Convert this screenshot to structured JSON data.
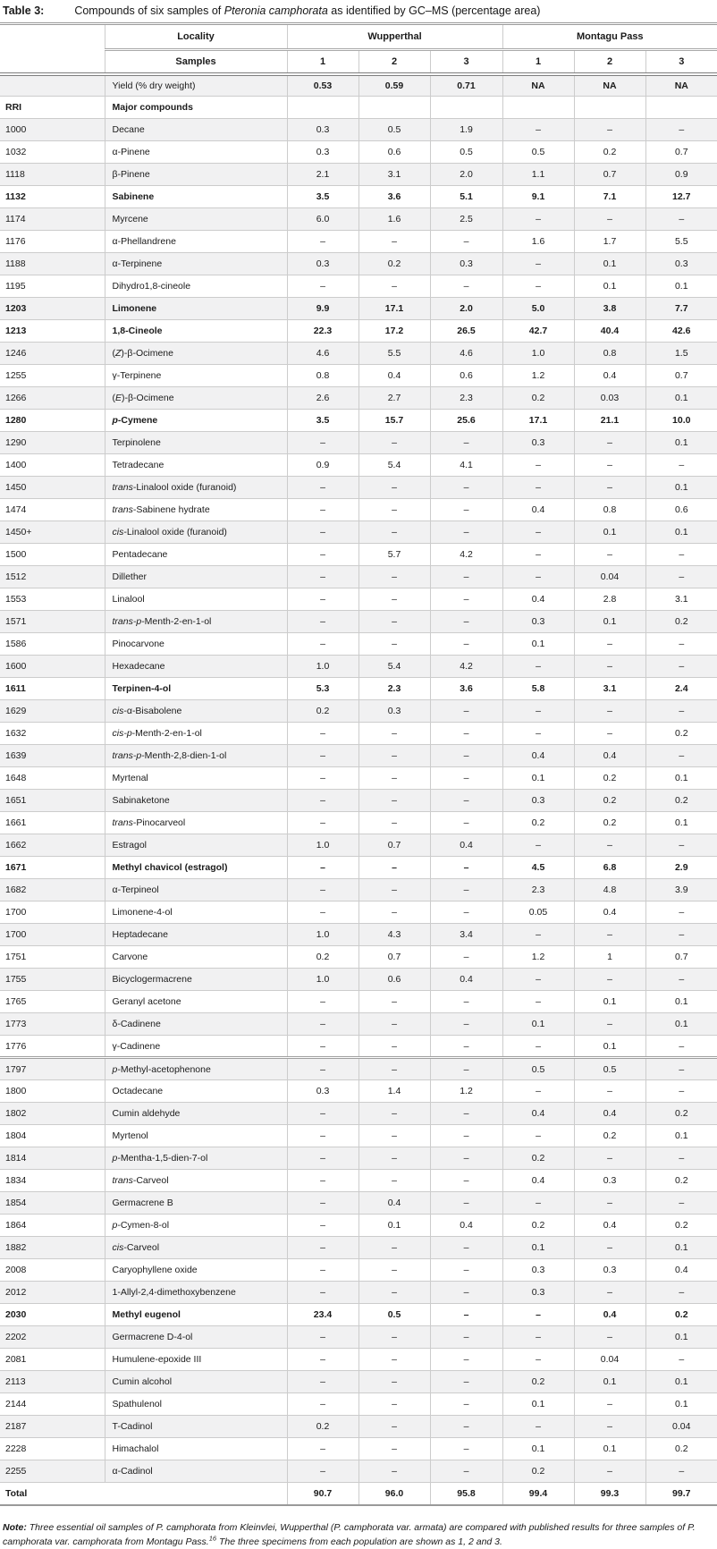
{
  "title": {
    "label": "Table 3:",
    "text": "Compounds of six samples of *Pteronia camphorata* as identified by GC–MS (percentage area)"
  },
  "table": {
    "locality_label": "Locality",
    "samples_label": "Samples",
    "groups": [
      {
        "name": "Wupperthal",
        "samples": [
          "1",
          "2",
          "3"
        ]
      },
      {
        "name": "Montagu Pass",
        "samples": [
          "1",
          "2",
          "3"
        ]
      }
    ],
    "yield_row": {
      "label": "Yield (% dry weight)",
      "values": [
        "0.53",
        "0.59",
        "0.71",
        "NA",
        "NA",
        "NA"
      ]
    },
    "subheader": {
      "rri": "RRI",
      "label": "Major compounds"
    },
    "rows": [
      {
        "rri": "1000",
        "name": "Decane",
        "bold": false,
        "values": [
          "0.3",
          "0.5",
          "1.9",
          "–",
          "–",
          "–"
        ]
      },
      {
        "rri": "1032",
        "name": "α-Pinene",
        "bold": false,
        "values": [
          "0.3",
          "0.6",
          "0.5",
          "0.5",
          "0.2",
          "0.7"
        ]
      },
      {
        "rri": "1118",
        "name": "β-Pinene",
        "bold": false,
        "values": [
          "2.1",
          "3.1",
          "2.0",
          "1.1",
          "0.7",
          "0.9"
        ]
      },
      {
        "rri": "1132",
        "name": "Sabinene",
        "bold": true,
        "values": [
          "3.5",
          "3.6",
          "5.1",
          "9.1",
          "7.1",
          "12.7"
        ]
      },
      {
        "rri": "1174",
        "name": "Myrcene",
        "bold": false,
        "values": [
          "6.0",
          "1.6",
          "2.5",
          "–",
          "–",
          "–"
        ]
      },
      {
        "rri": "1176",
        "name": "α-Phellandrene",
        "bold": false,
        "values": [
          "–",
          "–",
          "–",
          "1.6",
          "1.7",
          "5.5"
        ]
      },
      {
        "rri": "1188",
        "name": "α-Terpinene",
        "bold": false,
        "values": [
          "0.3",
          "0.2",
          "0.3",
          "–",
          "0.1",
          "0.3"
        ]
      },
      {
        "rri": "1195",
        "name": "Dihydro1,8-cineole",
        "bold": false,
        "values": [
          "–",
          "–",
          "–",
          "–",
          "0.1",
          "0.1"
        ]
      },
      {
        "rri": "1203",
        "name": "Limonene",
        "bold": true,
        "values": [
          "9.9",
          "17.1",
          "2.0",
          "5.0",
          "3.8",
          "7.7"
        ]
      },
      {
        "rri": "1213",
        "name": "1,8-Cineole",
        "bold": true,
        "values": [
          "22.3",
          "17.2",
          "26.5",
          "42.7",
          "40.4",
          "42.6"
        ]
      },
      {
        "rri": "1246",
        "name": "(*Z*)-β-Ocimene",
        "bold": false,
        "values": [
          "4.6",
          "5.5",
          "4.6",
          "1.0",
          "0.8",
          "1.5"
        ]
      },
      {
        "rri": "1255",
        "name": "γ-Terpinene",
        "bold": false,
        "values": [
          "0.8",
          "0.4",
          "0.6",
          "1.2",
          "0.4",
          "0.7"
        ]
      },
      {
        "rri": "1266",
        "name": "(*E*)-β-Ocimene",
        "bold": false,
        "values": [
          "2.6",
          "2.7",
          "2.3",
          "0.2",
          "0.03",
          "0.1"
        ]
      },
      {
        "rri": "1280",
        "name": "*p*-Cymene",
        "bold": true,
        "values": [
          "3.5",
          "15.7",
          "25.6",
          "17.1",
          "21.1",
          "10.0"
        ]
      },
      {
        "rri": "1290",
        "name": "Terpinolene",
        "bold": false,
        "values": [
          "–",
          "–",
          "–",
          "0.3",
          "–",
          "0.1"
        ]
      },
      {
        "rri": "1400",
        "name": "Tetradecane",
        "bold": false,
        "values": [
          "0.9",
          "5.4",
          "4.1",
          "–",
          "–",
          "–"
        ]
      },
      {
        "rri": "1450",
        "name": "*trans*-Linalool oxide (furanoid)",
        "bold": false,
        "values": [
          "–",
          "–",
          "–",
          "–",
          "–",
          "0.1"
        ]
      },
      {
        "rri": "1474",
        "name": "*trans*-Sabinene hydrate",
        "bold": false,
        "values": [
          "–",
          "–",
          "–",
          "0.4",
          "0.8",
          "0.6"
        ]
      },
      {
        "rri": "1450+",
        "name": "*cis*-Linalool oxide (furanoid)",
        "bold": false,
        "values": [
          "–",
          "–",
          "–",
          "–",
          "0.1",
          "0.1"
        ]
      },
      {
        "rri": "1500",
        "name": "Pentadecane",
        "bold": false,
        "values": [
          "–",
          "5.7",
          "4.2",
          "–",
          "–",
          "–"
        ]
      },
      {
        "rri": "1512",
        "name": "Dillether",
        "bold": false,
        "values": [
          "–",
          "–",
          "–",
          "–",
          "0.04",
          "–"
        ]
      },
      {
        "rri": "1553",
        "name": "Linalool",
        "bold": false,
        "values": [
          "–",
          "–",
          "–",
          "0.4",
          "2.8",
          "3.1"
        ]
      },
      {
        "rri": "1571",
        "name": "*trans-p*-Menth-2-en-1-ol",
        "bold": false,
        "values": [
          "–",
          "–",
          "–",
          "0.3",
          "0.1",
          "0.2"
        ]
      },
      {
        "rri": "1586",
        "name": "Pinocarvone",
        "bold": false,
        "values": [
          "–",
          "–",
          "–",
          "0.1",
          "–",
          "–"
        ]
      },
      {
        "rri": "1600",
        "name": "Hexadecane",
        "bold": false,
        "values": [
          "1.0",
          "5.4",
          "4.2",
          "–",
          "–",
          "–"
        ]
      },
      {
        "rri": "1611",
        "name": "Terpinen-4-ol",
        "bold": true,
        "values": [
          "5.3",
          "2.3",
          "3.6",
          "5.8",
          "3.1",
          "2.4"
        ]
      },
      {
        "rri": "1629",
        "name": "*cis*-α-Bisabolene",
        "bold": false,
        "values": [
          "0.2",
          "0.3",
          "–",
          "–",
          "–",
          "–"
        ]
      },
      {
        "rri": "1632",
        "name": "*cis-p*-Menth-2-en-1-ol",
        "bold": false,
        "values": [
          "–",
          "–",
          "–",
          "–",
          "–",
          "0.2"
        ]
      },
      {
        "rri": "1639",
        "name": "*trans-p*-Menth-2,8-dien-1-ol",
        "bold": false,
        "values": [
          "–",
          "–",
          "–",
          "0.4",
          "0.4",
          "–"
        ]
      },
      {
        "rri": "1648",
        "name": "Myrtenal",
        "bold": false,
        "values": [
          "–",
          "–",
          "–",
          "0.1",
          "0.2",
          "0.1"
        ]
      },
      {
        "rri": "1651",
        "name": "Sabinaketone",
        "bold": false,
        "values": [
          "–",
          "–",
          "–",
          "0.3",
          "0.2",
          "0.2"
        ]
      },
      {
        "rri": "1661",
        "name": "*trans*-Pinocarveol",
        "bold": false,
        "values": [
          "–",
          "–",
          "–",
          "0.2",
          "0.2",
          "0.1"
        ]
      },
      {
        "rri": "1662",
        "name": "Estragol",
        "bold": false,
        "values": [
          "1.0",
          "0.7",
          "0.4",
          "–",
          "–",
          "–"
        ]
      },
      {
        "rri": "1671",
        "name": "Methyl chavicol (estragol)",
        "bold": true,
        "values": [
          "–",
          "–",
          "–",
          "4.5",
          "6.8",
          "2.9"
        ]
      },
      {
        "rri": "1682",
        "name": "α-Terpineol",
        "bold": false,
        "values": [
          "–",
          "–",
          "–",
          "2.3",
          "4.8",
          "3.9"
        ]
      },
      {
        "rri": "1700",
        "name": "Limonene-4-ol",
        "bold": false,
        "values": [
          "–",
          "–",
          "–",
          "0.05",
          "0.4",
          "–"
        ]
      },
      {
        "rri": "1700",
        "name": "Heptadecane",
        "bold": false,
        "values": [
          "1.0",
          "4.3",
          "3.4",
          "–",
          "–",
          "–"
        ]
      },
      {
        "rri": "1751",
        "name": "Carvone",
        "bold": false,
        "values": [
          "0.2",
          "0.7",
          "–",
          "1.2",
          "1",
          "0.7"
        ]
      },
      {
        "rri": "1755",
        "name": "Bicyclogermacrene",
        "bold": false,
        "values": [
          "1.0",
          "0.6",
          "0.4",
          "–",
          "–",
          "–"
        ]
      },
      {
        "rri": "1765",
        "name": "Geranyl acetone",
        "bold": false,
        "values": [
          "–",
          "–",
          "–",
          "–",
          "0.1",
          "0.1"
        ]
      },
      {
        "rri": "1773",
        "name": "δ-Cadinene",
        "bold": false,
        "values": [
          "–",
          "–",
          "–",
          "0.1",
          "–",
          "0.1"
        ]
      },
      {
        "rri": "1776",
        "name": "γ-Cadinene",
        "bold": false,
        "values": [
          "–",
          "–",
          "–",
          "–",
          "0.1",
          "–"
        ]
      },
      {
        "rri": "1797",
        "name": "*p*-Methyl-acetophenone",
        "bold": false,
        "sep_before": true,
        "values": [
          "–",
          "–",
          "–",
          "0.5",
          "0.5",
          "–"
        ]
      },
      {
        "rri": "1800",
        "name": "Octadecane",
        "bold": false,
        "values": [
          "0.3",
          "1.4",
          "1.2",
          "–",
          "–",
          "–"
        ]
      },
      {
        "rri": "1802",
        "name": "Cumin aldehyde",
        "bold": false,
        "values": [
          "–",
          "–",
          "–",
          "0.4",
          "0.4",
          "0.2"
        ]
      },
      {
        "rri": "1804",
        "name": "Myrtenol",
        "bold": false,
        "values": [
          "–",
          "–",
          "–",
          "–",
          "0.2",
          "0.1"
        ]
      },
      {
        "rri": "1814",
        "name": "*p*-Mentha-1,5-dien-7-ol",
        "bold": false,
        "values": [
          "–",
          "–",
          "–",
          "0.2",
          "–",
          "–"
        ]
      },
      {
        "rri": "1834",
        "name": "*trans*-Carveol",
        "bold": false,
        "values": [
          "–",
          "–",
          "–",
          "0.4",
          "0.3",
          "0.2"
        ]
      },
      {
        "rri": "1854",
        "name": "Germacrene B",
        "bold": false,
        "values": [
          "–",
          "0.4",
          "–",
          "–",
          "–",
          "–"
        ]
      },
      {
        "rri": "1864",
        "name": "*p*-Cymen-8-ol",
        "bold": false,
        "values": [
          "–",
          "0.1",
          "0.4",
          "0.2",
          "0.4",
          "0.2"
        ]
      },
      {
        "rri": "1882",
        "name": "*cis*-Carveol",
        "bold": false,
        "values": [
          "–",
          "–",
          "–",
          "0.1",
          "–",
          "0.1"
        ]
      },
      {
        "rri": "2008",
        "name": "Caryophyllene oxide",
        "bold": false,
        "values": [
          "–",
          "–",
          "–",
          "0.3",
          "0.3",
          "0.4"
        ]
      },
      {
        "rri": "2012",
        "name": "1-Allyl-2,4-dimethoxybenzene",
        "bold": false,
        "values": [
          "–",
          "–",
          "–",
          "0.3",
          "–",
          "–"
        ]
      },
      {
        "rri": "2030",
        "name": "Methyl eugenol",
        "bold": true,
        "values": [
          "23.4",
          "0.5",
          "–",
          "–",
          "0.4",
          "0.2"
        ]
      },
      {
        "rri": "2202",
        "name": "Germacrene D-4-ol",
        "bold": false,
        "values": [
          "–",
          "–",
          "–",
          "–",
          "–",
          "0.1"
        ]
      },
      {
        "rri": "2081",
        "name": "Humulene-epoxide III",
        "bold": false,
        "values": [
          "–",
          "–",
          "–",
          "–",
          "0.04",
          "–"
        ]
      },
      {
        "rri": "2113",
        "name": "Cumin alcohol",
        "bold": false,
        "values": [
          "–",
          "–",
          "–",
          "0.2",
          "0.1",
          "0.1"
        ]
      },
      {
        "rri": "2144",
        "name": "Spathulenol",
        "bold": false,
        "values": [
          "–",
          "–",
          "–",
          "0.1",
          "–",
          "0.1"
        ]
      },
      {
        "rri": "2187",
        "name": "T-Cadinol",
        "bold": false,
        "values": [
          "0.2",
          "–",
          "–",
          "–",
          "–",
          "0.04"
        ]
      },
      {
        "rri": "2228",
        "name": "Himachalol",
        "bold": false,
        "values": [
          "–",
          "–",
          "–",
          "0.1",
          "0.1",
          "0.2"
        ]
      },
      {
        "rri": "2255",
        "name": "α-Cadinol",
        "bold": false,
        "values": [
          "–",
          "–",
          "–",
          "0.2",
          "–",
          "–"
        ]
      }
    ],
    "total_row": {
      "label": "Total",
      "values": [
        "90.7",
        "96.0",
        "95.8",
        "99.4",
        "99.3",
        "99.7"
      ]
    }
  },
  "note": {
    "label": "Note:",
    "text": "Three essential oil samples of P. camphorata from Kleinvlei, Wupperthal (P. camphorata var. armata) are compared with published results for three samples of P. camphorata var. camphorata from Montagu Pass.^16^ The three specimens from each population are shown as 1, 2 and 3."
  }
}
